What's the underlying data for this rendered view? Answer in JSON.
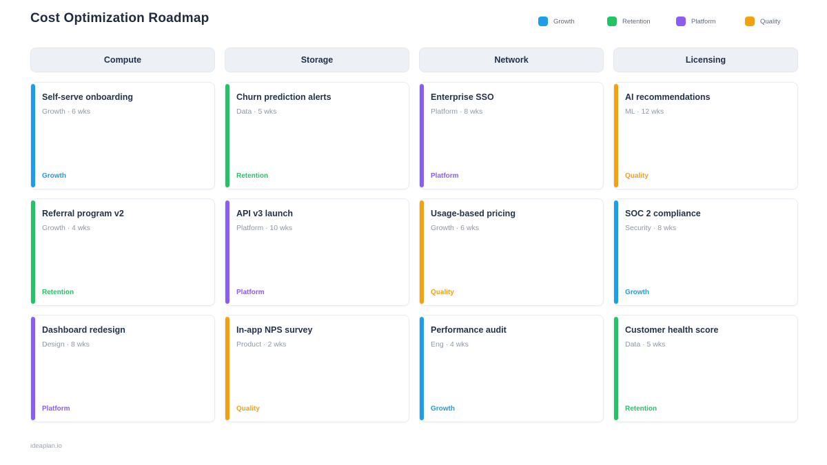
{
  "page": {
    "title": "Cost Optimization Roadmap",
    "footer": "ideaplan.io"
  },
  "legend": [
    {
      "label": "Growth",
      "color": "#1b9fe8"
    },
    {
      "label": "Retention",
      "color": "#24c366"
    },
    {
      "label": "Platform",
      "color": "#8b5cf6"
    },
    {
      "label": "Quality",
      "color": "#f5a00d"
    }
  ],
  "columns": [
    {
      "header": "Compute",
      "cards": [
        {
          "title": "Self-serve onboarding",
          "meta": "Growth · 6 wks",
          "tag": "Growth",
          "color": "#1b9fe8"
        },
        {
          "title": "Referral program v2",
          "meta": "Growth · 4 wks",
          "tag": "Retention",
          "color": "#24c366"
        },
        {
          "title": "Dashboard redesign",
          "meta": "Design · 8 wks",
          "tag": "Platform",
          "color": "#8b5cf6"
        }
      ]
    },
    {
      "header": "Storage",
      "cards": [
        {
          "title": "Churn prediction alerts",
          "meta": "Data · 5 wks",
          "tag": "Retention",
          "color": "#24c366"
        },
        {
          "title": "API v3 launch",
          "meta": "Platform · 10 wks",
          "tag": "Platform",
          "color": "#8b5cf6"
        },
        {
          "title": "In-app NPS survey",
          "meta": "Product · 2 wks",
          "tag": "Quality",
          "color": "#f5a00d"
        }
      ]
    },
    {
      "header": "Network",
      "cards": [
        {
          "title": "Enterprise SSO",
          "meta": "Platform · 8 wks",
          "tag": "Platform",
          "color": "#8b5cf6"
        },
        {
          "title": "Usage-based pricing",
          "meta": "Growth · 6 wks",
          "tag": "Quality",
          "color": "#f5a00d"
        },
        {
          "title": "Performance audit",
          "meta": "Eng · 4 wks",
          "tag": "Growth",
          "color": "#1b9fe8"
        }
      ]
    },
    {
      "header": "Licensing",
      "cards": [
        {
          "title": "AI recommendations",
          "meta": "ML · 12 wks",
          "tag": "Quality",
          "color": "#f5a00d"
        },
        {
          "title": "SOC 2 compliance",
          "meta": "Security · 8 wks",
          "tag": "Growth",
          "color": "#1b9fe8"
        },
        {
          "title": "Customer health score",
          "meta": "Data · 5 wks",
          "tag": "Retention",
          "color": "#24c366"
        }
      ]
    }
  ]
}
